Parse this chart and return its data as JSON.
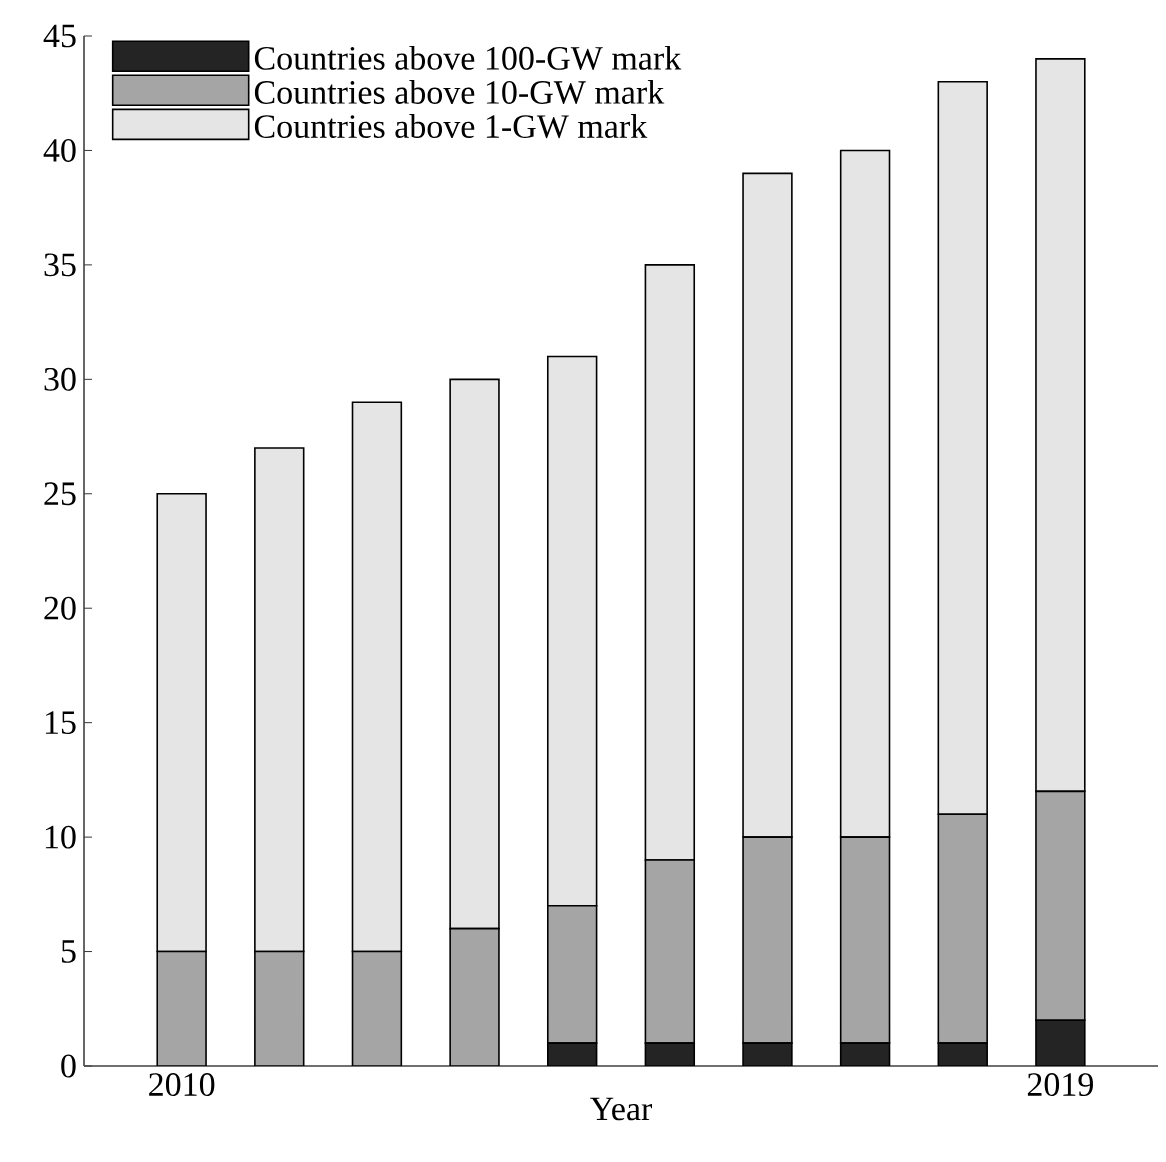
{
  "chart_data": {
    "type": "bar",
    "stacked": true,
    "xlabel": "Year",
    "x": [
      2010,
      2011,
      2012,
      2013,
      2014,
      2015,
      2016,
      2017,
      2018,
      2019
    ],
    "series": [
      {
        "name": "Countries above 100-GW mark",
        "color": "#242424",
        "values": [
          0,
          0,
          0,
          0,
          1,
          1,
          1,
          1,
          1,
          2
        ]
      },
      {
        "name": "Countries above 10-GW mark",
        "color": "#a5a5a5",
        "values": [
          5,
          5,
          5,
          6,
          6,
          8,
          9,
          9,
          10,
          10
        ]
      },
      {
        "name": "Countries above 1-GW mark",
        "color": "#e5e5e5",
        "values": [
          20,
          22,
          24,
          24,
          24,
          26,
          29,
          30,
          32,
          32
        ]
      }
    ],
    "xlim": [
      2009,
      2020
    ],
    "ylim": [
      0,
      45
    ],
    "xticks": [
      2010,
      {
        "value": 2011,
        "label": null
      },
      {
        "value": 2012,
        "label": null
      },
      {
        "value": 2013,
        "label": null
      },
      {
        "value": 2014,
        "label": null
      },
      {
        "value": 2015,
        "label": null
      },
      {
        "value": 2016,
        "label": null
      },
      {
        "value": 2017,
        "label": null
      },
      {
        "value": 2018,
        "label": null
      },
      2019
    ],
    "yticks": [
      0,
      5,
      10,
      15,
      20,
      25,
      30,
      35,
      40,
      45
    ],
    "grid": false,
    "legend": "top left"
  }
}
